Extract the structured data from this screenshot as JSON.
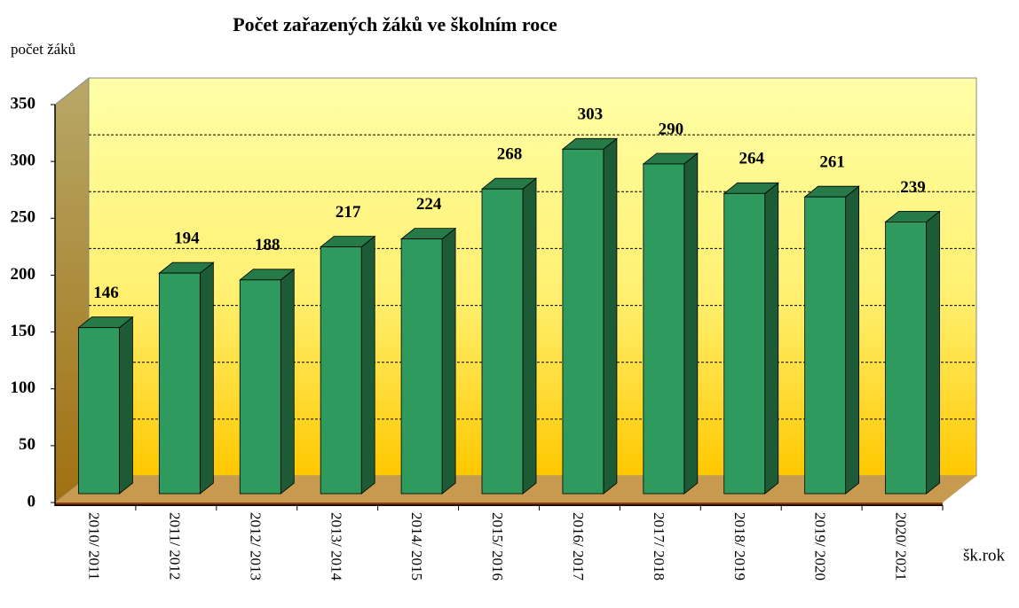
{
  "chart_data": {
    "type": "bar",
    "title": "Počet zařazených žáků ve školním roce",
    "y_label": "počet žáků",
    "x_label": "šk.rok",
    "categories": [
      "2010/ 2011",
      "2011/ 2012",
      "2012/ 2013",
      "2013/ 2014",
      "2014/ 2015",
      "2015/ 2016",
      "2016/ 2017",
      "2017/ 2018",
      "2018/ 2019",
      "2019/ 2020",
      "2020/ 2021"
    ],
    "values": [
      146,
      194,
      188,
      217,
      224,
      268,
      303,
      290,
      264,
      261,
      239
    ],
    "color": "#2e9a5e",
    "ylim": [
      0,
      350
    ],
    "yticks": [
      0,
      50,
      100,
      150,
      200,
      250,
      300,
      350
    ],
    "grid": true
  }
}
